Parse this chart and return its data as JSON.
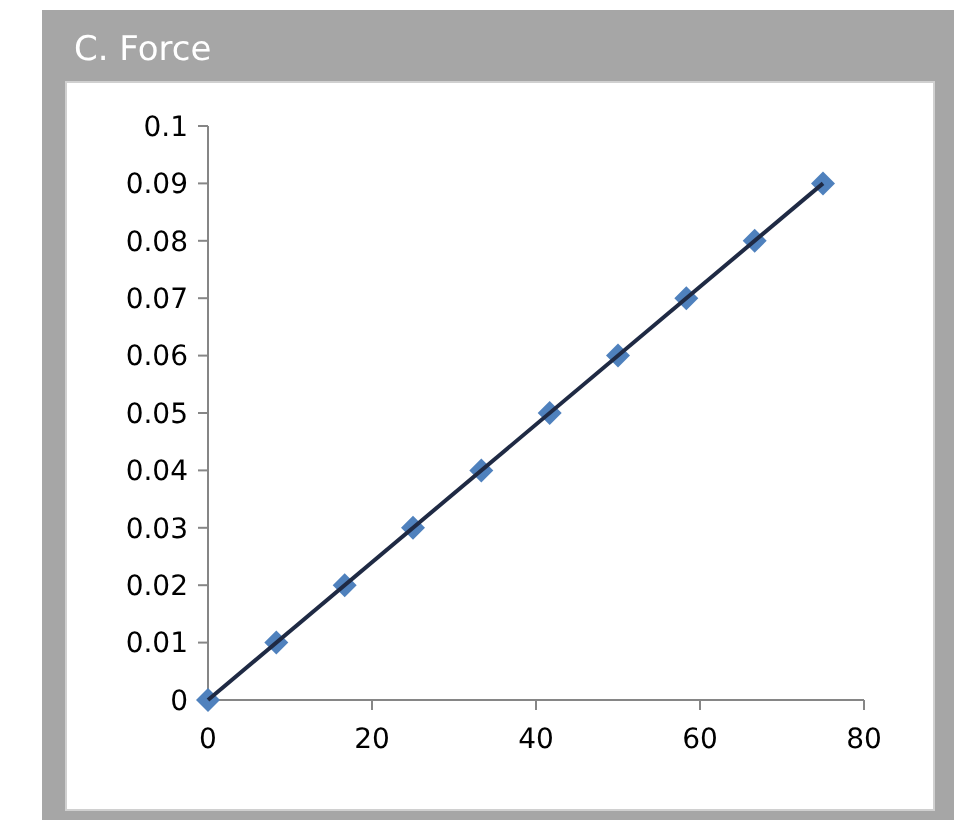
{
  "chart_data": {
    "type": "scatter",
    "title": "C. Force",
    "xlim": [
      0,
      80
    ],
    "xticks": [
      0,
      20,
      40,
      60,
      80
    ],
    "ylim": [
      0,
      0.1
    ],
    "yticks": [
      0,
      0.01,
      0.02,
      0.03,
      0.04,
      0.05,
      0.06,
      0.07,
      0.08,
      0.09,
      0.1
    ],
    "series": [
      {
        "color": "#4f81bd",
        "marker": "diamond",
        "x": [
          0,
          8.33,
          16.67,
          25,
          33.33,
          41.67,
          50,
          58.33,
          66.67,
          75
        ],
        "values": [
          0,
          0.01,
          0.02,
          0.03,
          0.04,
          0.05,
          0.06,
          0.07,
          0.08,
          0.09
        ]
      },
      {
        "type": "line",
        "color": "#1f2a44",
        "x": [
          0,
          75
        ],
        "values": [
          0,
          0.09
        ]
      }
    ]
  }
}
